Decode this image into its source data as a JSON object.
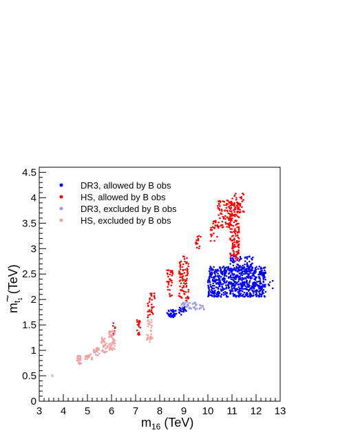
{
  "chart_data": {
    "type": "scatter",
    "title": "",
    "xlabel": {
      "main": "m",
      "sub": "16",
      "unit": " (TeV)"
    },
    "ylabel": {
      "main": "m",
      "sub": "t",
      "subsub": "1",
      "tilde": "~",
      "unit": " (TeV)"
    },
    "xlim": [
      3,
      13
    ],
    "ylim": [
      0,
      4.6
    ],
    "xticks": [
      3,
      4,
      5,
      6,
      7,
      8,
      9,
      10,
      11,
      12,
      13
    ],
    "yticks": [
      0,
      0.5,
      1,
      1.5,
      2,
      2.5,
      3,
      3.5,
      4,
      4.5
    ],
    "grid": false,
    "legend_position": "top-left",
    "series": [
      {
        "name": "DR3, allowed by B obs",
        "color": "#0000ff",
        "clusters": [
          {
            "x": [
              8.3,
              8.7
            ],
            "y": [
              1.65,
              1.8
            ],
            "n": 40
          },
          {
            "x": [
              8.8,
              9.1
            ],
            "y": [
              1.7,
              1.85
            ],
            "n": 25
          },
          {
            "x": [
              10.0,
              12.4
            ],
            "y": [
              2.05,
              2.65
            ],
            "n": 700
          },
          {
            "x": [
              10.9,
              11.9
            ],
            "y": [
              2.55,
              2.85
            ],
            "n": 80
          },
          {
            "x": [
              12.45,
              12.7
            ],
            "y": [
              2.2,
              2.4
            ],
            "n": 5
          }
        ]
      },
      {
        "name": "HS, allowed by B obs",
        "color": "#ff0000",
        "clusters": [
          {
            "x": [
              6.05,
              6.15
            ],
            "y": [
              1.3,
              1.55
            ],
            "n": 8
          },
          {
            "x": [
              7.05,
              7.2
            ],
            "y": [
              1.3,
              1.6
            ],
            "n": 20
          },
          {
            "x": [
              7.5,
              7.8
            ],
            "y": [
              1.6,
              2.15
            ],
            "n": 30
          },
          {
            "x": [
              8.3,
              8.55
            ],
            "y": [
              2.05,
              2.65
            ],
            "n": 35
          },
          {
            "x": [
              8.8,
              9.2
            ],
            "y": [
              1.95,
              2.85
            ],
            "n": 90
          },
          {
            "x": [
              9.5,
              9.75
            ],
            "y": [
              3.0,
              3.25
            ],
            "n": 15
          },
          {
            "x": [
              10.1,
              10.4
            ],
            "y": [
              3.15,
              3.55
            ],
            "n": 25
          },
          {
            "x": [
              10.4,
              11.0
            ],
            "y": [
              3.4,
              3.95
            ],
            "n": 80
          },
          {
            "x": [
              10.9,
              11.3
            ],
            "y": [
              2.75,
              3.9
            ],
            "n": 150
          },
          {
            "x": [
              11.0,
              11.5
            ],
            "y": [
              3.7,
              4.1
            ],
            "n": 30
          }
        ]
      },
      {
        "name": "DR3, excluded by B obs",
        "color": "#9999ee",
        "clusters": [
          {
            "x": [
              8.9,
              9.5
            ],
            "y": [
              1.8,
              1.95
            ],
            "n": 30
          },
          {
            "x": [
              9.45,
              9.85
            ],
            "y": [
              1.8,
              1.9
            ],
            "n": 15
          }
        ]
      },
      {
        "name": "HS, excluded by B obs",
        "color": "#f4a0a0",
        "clusters": [
          {
            "x": [
              3.5,
              3.6
            ],
            "y": [
              0.45,
              0.52
            ],
            "n": 2
          },
          {
            "x": [
              4.55,
              4.75
            ],
            "y": [
              0.72,
              0.9
            ],
            "n": 25
          },
          {
            "x": [
              4.9,
              5.2
            ],
            "y": [
              0.82,
              0.95
            ],
            "n": 20
          },
          {
            "x": [
              5.25,
              5.5
            ],
            "y": [
              0.9,
              1.05
            ],
            "n": 25
          },
          {
            "x": [
              5.55,
              5.85
            ],
            "y": [
              0.95,
              1.25
            ],
            "n": 35
          },
          {
            "x": [
              5.9,
              6.15
            ],
            "y": [
              1.0,
              1.4
            ],
            "n": 50
          },
          {
            "x": [
              7.45,
              7.7
            ],
            "y": [
              1.15,
              1.6
            ],
            "n": 30
          }
        ]
      }
    ]
  }
}
